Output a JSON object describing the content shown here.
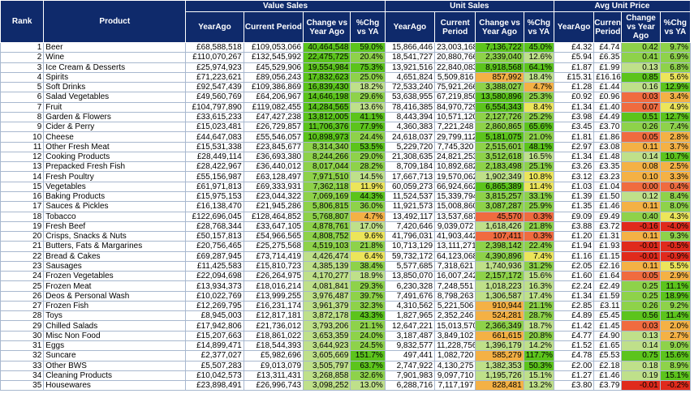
{
  "headers": {
    "rank": "Rank",
    "product": "Product",
    "value_sales": "Value Sales",
    "unit_sales": "Unit Sales",
    "avg_unit_price": "Avg Unit Price",
    "year_ago": "YearAgo",
    "current_period": "Current Period",
    "change_vs_year_ago": "Change vs Year Ago",
    "pct_chg_vs_ya": "%Chg vs YA",
    "current": "Current Period",
    "change_vs_year_ago_short": "Change vs Year Ago",
    "pct_chg_short": "%Chg vs YA"
  },
  "rows": [
    {
      "rank": "1",
      "product": "Beer",
      "v_ya": "£68,588,518",
      "v_cur": "£109,053,066",
      "v_chg": "40,464,548",
      "v_pct": "59.0%",
      "u_ya": "15,866,446",
      "u_cur": "23,003,168",
      "u_chg": "7,136,722",
      "u_pct": "45.0%",
      "p_ya": "£4.32",
      "p_cur": "£4.74",
      "p_chg": "0.42",
      "p_pct": "9.7%"
    },
    {
      "rank": "2",
      "product": "Wine",
      "v_ya": "£110,070,267",
      "v_cur": "£132,545,992",
      "v_chg": "22,475,725",
      "v_pct": "20.4%",
      "u_ya": "18,541,727",
      "u_cur": "20,880,766",
      "u_chg": "2,339,040",
      "u_pct": "12.6%",
      "p_ya": "£5.94",
      "p_cur": "£6.35",
      "p_chg": "0.41",
      "p_pct": "6.9%"
    },
    {
      "rank": "3",
      "product": "Ice Cream & Desserts",
      "v_ya": "£25,974,923",
      "v_cur": "£45,529,906",
      "v_chg": "19,554,984",
      "v_pct": "75.3%",
      "u_ya": "13,921,516",
      "u_cur": "22,840,083",
      "u_chg": "8,918,568",
      "u_pct": "64.1%",
      "p_ya": "£1.87",
      "p_cur": "£1.99",
      "p_chg": "0.13",
      "p_pct": "6.8%"
    },
    {
      "rank": "4",
      "product": "Spirits",
      "v_ya": "£71,223,621",
      "v_cur": "£89,056,243",
      "v_chg": "17,832,623",
      "v_pct": "25.0%",
      "u_ya": "4,651,824",
      "u_cur": "5,509,816",
      "u_chg": "857,992",
      "u_pct": "18.4%",
      "p_ya": "£15.31",
      "p_cur": "£16.16",
      "p_chg": "0.85",
      "p_pct": "5.6%"
    },
    {
      "rank": "5",
      "product": "Soft Drinks",
      "v_ya": "£92,547,439",
      "v_cur": "£109,386,869",
      "v_chg": "16,839,430",
      "v_pct": "18.2%",
      "u_ya": "72,533,240",
      "u_cur": "75,921,266",
      "u_chg": "3,388,027",
      "u_pct": "4.7%",
      "p_ya": "£1.28",
      "p_cur": "£1.44",
      "p_chg": "0.16",
      "p_pct": "12.9%"
    },
    {
      "rank": "6",
      "product": "Salad Vegetables",
      "v_ya": "£49,560,769",
      "v_cur": "£64,206,967",
      "v_chg": "14,646,198",
      "v_pct": "29.6%",
      "u_ya": "53,638,955",
      "u_cur": "67,219,850",
      "u_chg": "13,580,896",
      "u_pct": "25.3%",
      "p_ya": "£0.92",
      "p_cur": "£0.96",
      "p_chg": "0.03",
      "p_pct": "3.4%"
    },
    {
      "rank": "7",
      "product": "Fruit",
      "v_ya": "£104,797,890",
      "v_cur": "£119,082,455",
      "v_chg": "14,284,565",
      "v_pct": "13.6%",
      "u_ya": "78,416,385",
      "u_cur": "84,970,729",
      "u_chg": "6,554,343",
      "u_pct": "8.4%",
      "p_ya": "£1.34",
      "p_cur": "£1.40",
      "p_chg": "0.07",
      "p_pct": "4.9%"
    },
    {
      "rank": "8",
      "product": "Garden & Flowers",
      "v_ya": "£33,615,233",
      "v_cur": "£47,427,238",
      "v_chg": "13,812,005",
      "v_pct": "41.1%",
      "u_ya": "8,443,394",
      "u_cur": "10,571,120",
      "u_chg": "2,127,726",
      "u_pct": "25.2%",
      "p_ya": "£3.98",
      "p_cur": "£4.49",
      "p_chg": "0.51",
      "p_pct": "12.7%"
    },
    {
      "rank": "9",
      "product": "Cider & Perry",
      "v_ya": "£15,023,481",
      "v_cur": "£26,729,857",
      "v_chg": "11,706,376",
      "v_pct": "77.9%",
      "u_ya": "4,360,383",
      "u_cur": "7,221,248",
      "u_chg": "2,860,865",
      "u_pct": "65.6%",
      "p_ya": "£3.45",
      "p_cur": "£3.70",
      "p_chg": "0.26",
      "p_pct": "7.4%"
    },
    {
      "rank": "10",
      "product": "Cheese",
      "v_ya": "£44,647,083",
      "v_cur": "£55,546,057",
      "v_chg": "10,898,973",
      "v_pct": "24.4%",
      "u_ya": "24,618,037",
      "u_cur": "29,799,112",
      "u_chg": "5,181,075",
      "u_pct": "21.0%",
      "p_ya": "£1.81",
      "p_cur": "£1.86",
      "p_chg": "0.05",
      "p_pct": "2.8%"
    },
    {
      "rank": "11",
      "product": "Other Fresh Meat",
      "v_ya": "£15,531,338",
      "v_cur": "£23,845,677",
      "v_chg": "8,314,340",
      "v_pct": "53.5%",
      "u_ya": "5,229,720",
      "u_cur": "7,745,320",
      "u_chg": "2,515,601",
      "u_pct": "48.1%",
      "p_ya": "£2.97",
      "p_cur": "£3.08",
      "p_chg": "0.11",
      "p_pct": "3.7%"
    },
    {
      "rank": "12",
      "product": "Cooking Products",
      "v_ya": "£28,449,114",
      "v_cur": "£36,693,380",
      "v_chg": "8,244,266",
      "v_pct": "29.0%",
      "u_ya": "21,308,635",
      "u_cur": "24,821,253",
      "u_chg": "3,512,618",
      "u_pct": "16.5%",
      "p_ya": "£1.34",
      "p_cur": "£1.48",
      "p_chg": "0.14",
      "p_pct": "10.7%"
    },
    {
      "rank": "13",
      "product": "Prepacked Fresh Fish",
      "v_ya": "£28,422,967",
      "v_cur": "£36,440,012",
      "v_chg": "8,017,044",
      "v_pct": "28.2%",
      "u_ya": "8,709,184",
      "u_cur": "10,892,682",
      "u_chg": "2,183,498",
      "u_pct": "25.1%",
      "p_ya": "£3.26",
      "p_cur": "£3.35",
      "p_chg": "0.08",
      "p_pct": "2.5%"
    },
    {
      "rank": "14",
      "product": "Fresh Poultry",
      "v_ya": "£55,156,987",
      "v_cur": "£63,128,497",
      "v_chg": "7,971,510",
      "v_pct": "14.5%",
      "u_ya": "17,667,713",
      "u_cur": "19,570,062",
      "u_chg": "1,902,349",
      "u_pct": "10.8%",
      "p_ya": "£3.12",
      "p_cur": "£3.23",
      "p_chg": "0.10",
      "p_pct": "3.3%"
    },
    {
      "rank": "15",
      "product": "Vegetables",
      "v_ya": "£61,971,813",
      "v_cur": "£69,333,931",
      "v_chg": "7,362,118",
      "v_pct": "11.9%",
      "u_ya": "60,059,273",
      "u_cur": "66,924,662",
      "u_chg": "6,865,389",
      "u_pct": "11.4%",
      "p_ya": "£1.03",
      "p_cur": "£1.04",
      "p_chg": "0.00",
      "p_pct": "0.4%"
    },
    {
      "rank": "16",
      "product": "Baking Products",
      "v_ya": "£15,975,153",
      "v_cur": "£23,044,322",
      "v_chg": "7,069,169",
      "v_pct": "44.3%",
      "u_ya": "11,524,537",
      "u_cur": "15,339,794",
      "u_chg": "3,815,257",
      "u_pct": "33.1%",
      "p_ya": "£1.39",
      "p_cur": "£1.50",
      "p_chg": "0.12",
      "p_pct": "8.4%"
    },
    {
      "rank": "17",
      "product": "Sauces & Pickles",
      "v_ya": "£16,138,470",
      "v_cur": "£21,945,286",
      "v_chg": "5,806,815",
      "v_pct": "36.0%",
      "u_ya": "11,921,573",
      "u_cur": "15,008,860",
      "u_chg": "3,087,287",
      "u_pct": "25.9%",
      "p_ya": "£1.35",
      "p_cur": "£1.46",
      "p_chg": "0.11",
      "p_pct": "8.0%"
    },
    {
      "rank": "18",
      "product": "Tobacco",
      "v_ya": "£122,696,045",
      "v_cur": "£128,464,852",
      "v_chg": "5,768,807",
      "v_pct": "4.7%",
      "u_ya": "13,492,117",
      "u_cur": "13,537,687",
      "u_chg": "45,570",
      "u_pct": "0.3%",
      "p_ya": "£9.09",
      "p_cur": "£9.49",
      "p_chg": "0.40",
      "p_pct": "4.3%"
    },
    {
      "rank": "19",
      "product": "Fresh Beef",
      "v_ya": "£28,768,344",
      "v_cur": "£33,647,105",
      "v_chg": "4,878,761",
      "v_pct": "17.0%",
      "u_ya": "7,420,646",
      "u_cur": "9,039,072",
      "u_chg": "1,618,426",
      "u_pct": "21.8%",
      "p_ya": "£3.88",
      "p_cur": "£3.72",
      "p_chg": "-0.16",
      "p_pct": "-4.0%"
    },
    {
      "rank": "20",
      "product": "Crisps, Snacks & Nuts",
      "v_ya": "£50,157,813",
      "v_cur": "£54,966,565",
      "v_chg": "4,808,752",
      "v_pct": "9.6%",
      "u_ya": "41,796,031",
      "u_cur": "41,903,442",
      "u_chg": "107,411",
      "u_pct": "0.3%",
      "p_ya": "£1.20",
      "p_cur": "£1.31",
      "p_chg": "0.11",
      "p_pct": "9.3%"
    },
    {
      "rank": "21",
      "product": "Butters, Fats & Margarines",
      "v_ya": "£20,756,465",
      "v_cur": "£25,275,568",
      "v_chg": "4,519,103",
      "v_pct": "21.8%",
      "u_ya": "10,713,129",
      "u_cur": "13,111,271",
      "u_chg": "2,398,142",
      "u_pct": "22.4%",
      "p_ya": "£1.94",
      "p_cur": "£1.93",
      "p_chg": "-0.01",
      "p_pct": "-0.5%"
    },
    {
      "rank": "22",
      "product": "Bread & Cakes",
      "v_ya": "£69,287,945",
      "v_cur": "£73,714,419",
      "v_chg": "4,426,474",
      "v_pct": "6.4%",
      "u_ya": "59,732,172",
      "u_cur": "64,123,068",
      "u_chg": "4,390,896",
      "u_pct": "7.4%",
      "p_ya": "£1.16",
      "p_cur": "£1.15",
      "p_chg": "-0.01",
      "p_pct": "-0.9%"
    },
    {
      "rank": "23",
      "product": "Sausages",
      "v_ya": "£11,425,583",
      "v_cur": "£15,810,723",
      "v_chg": "4,385,139",
      "v_pct": "38.4%",
      "u_ya": "5,577,685",
      "u_cur": "7,318,621",
      "u_chg": "1,740,936",
      "u_pct": "31.2%",
      "p_ya": "£2.05",
      "p_cur": "£2.16",
      "p_chg": "0.11",
      "p_pct": "5.5%"
    },
    {
      "rank": "24",
      "product": "Frozen Vegetables",
      "v_ya": "£22,094,698",
      "v_cur": "£26,264,975",
      "v_chg": "4,170,277",
      "v_pct": "18.9%",
      "u_ya": "13,850,070",
      "u_cur": "16,007,242",
      "u_chg": "2,157,172",
      "u_pct": "15.6%",
      "p_ya": "£1.60",
      "p_cur": "£1.64",
      "p_chg": "0.05",
      "p_pct": "2.9%"
    },
    {
      "rank": "25",
      "product": "Frozen Meat",
      "v_ya": "£13,934,373",
      "v_cur": "£18,016,214",
      "v_chg": "4,081,841",
      "v_pct": "29.3%",
      "u_ya": "6,230,328",
      "u_cur": "7,248,551",
      "u_chg": "1,018,223",
      "u_pct": "16.3%",
      "p_ya": "£2.24",
      "p_cur": "£2.49",
      "p_chg": "0.25",
      "p_pct": "11.1%"
    },
    {
      "rank": "26",
      "product": "Deos & Personal Wash",
      "v_ya": "£10,022,769",
      "v_cur": "£13,999,255",
      "v_chg": "3,976,487",
      "v_pct": "39.7%",
      "u_ya": "7,491,676",
      "u_cur": "8,798,263",
      "u_chg": "1,306,587",
      "u_pct": "17.4%",
      "p_ya": "£1.34",
      "p_cur": "£1.59",
      "p_chg": "0.25",
      "p_pct": "18.9%"
    },
    {
      "rank": "27",
      "product": "Frozen Fish",
      "v_ya": "£12,269,795",
      "v_cur": "£16,231,174",
      "v_chg": "3,961,379",
      "v_pct": "32.3%",
      "u_ya": "4,310,562",
      "u_cur": "5,221,506",
      "u_chg": "910,944",
      "u_pct": "21.1%",
      "p_ya": "£2.85",
      "p_cur": "£3.11",
      "p_chg": "0.26",
      "p_pct": "9.2%"
    },
    {
      "rank": "28",
      "product": "Toys",
      "v_ya": "£8,945,003",
      "v_cur": "£12,817,181",
      "v_chg": "3,872,178",
      "v_pct": "43.3%",
      "u_ya": "1,827,965",
      "u_cur": "2,352,246",
      "u_chg": "524,281",
      "u_pct": "28.7%",
      "p_ya": "£4.89",
      "p_cur": "£5.45",
      "p_chg": "0.56",
      "p_pct": "11.4%"
    },
    {
      "rank": "29",
      "product": "Chilled Salads",
      "v_ya": "£17,942,806",
      "v_cur": "£21,736,012",
      "v_chg": "3,793,206",
      "v_pct": "21.1%",
      "u_ya": "12,647,221",
      "u_cur": "15,013,570",
      "u_chg": "2,366,349",
      "u_pct": "18.7%",
      "p_ya": "£1.42",
      "p_cur": "£1.45",
      "p_chg": "0.03",
      "p_pct": "2.0%"
    },
    {
      "rank": "30",
      "product": "Misc Non Food",
      "v_ya": "£15,207,663",
      "v_cur": "£18,861,022",
      "v_chg": "3,653,359",
      "v_pct": "24.0%",
      "u_ya": "3,187,487",
      "u_cur": "3,849,102",
      "u_chg": "661,615",
      "u_pct": "20.8%",
      "p_ya": "£4.77",
      "p_cur": "£4.90",
      "p_chg": "0.13",
      "p_pct": "2.7%"
    },
    {
      "rank": "31",
      "product": "Eggs",
      "v_ya": "£14,899,471",
      "v_cur": "£18,544,393",
      "v_chg": "3,644,923",
      "v_pct": "24.5%",
      "u_ya": "9,832,577",
      "u_cur": "11,228,756",
      "u_chg": "1,396,179",
      "u_pct": "14.2%",
      "p_ya": "£1.52",
      "p_cur": "£1.65",
      "p_chg": "0.14",
      "p_pct": "9.0%"
    },
    {
      "rank": "32",
      "product": "Suncare",
      "v_ya": "£2,377,027",
      "v_cur": "£5,982,696",
      "v_chg": "3,605,669",
      "v_pct": "151.7%",
      "u_ya": "497,441",
      "u_cur": "1,082,720",
      "u_chg": "585,279",
      "u_pct": "117.7%",
      "p_ya": "£4.78",
      "p_cur": "£5.53",
      "p_chg": "0.75",
      "p_pct": "15.6%"
    },
    {
      "rank": "33",
      "product": "Other BWS",
      "v_ya": "£5,507,283",
      "v_cur": "£9,013,079",
      "v_chg": "3,505,797",
      "v_pct": "63.7%",
      "u_ya": "2,747,922",
      "u_cur": "4,130,275",
      "u_chg": "1,382,353",
      "u_pct": "50.3%",
      "p_ya": "£2.00",
      "p_cur": "£2.18",
      "p_chg": "0.18",
      "p_pct": "8.9%"
    },
    {
      "rank": "34",
      "product": "Cleaning Products",
      "v_ya": "£10,042,573",
      "v_cur": "£13,311,431",
      "v_chg": "3,268,858",
      "v_pct": "32.6%",
      "u_ya": "7,901,983",
      "u_cur": "9,097,710",
      "u_chg": "1,195,726",
      "u_pct": "15.1%",
      "p_ya": "£1.27",
      "p_cur": "£1.46",
      "p_chg": "0.19",
      "p_pct": "15.1%"
    },
    {
      "rank": "35",
      "product": "Housewares",
      "v_ya": "£23,898,491",
      "v_cur": "£26,996,743",
      "v_chg": "3,098,252",
      "v_pct": "13.0%",
      "u_ya": "6,288,716",
      "u_cur": "7,117,197",
      "u_chg": "828,481",
      "u_pct": "13.2%",
      "p_ya": "£3.80",
      "p_cur": "£3.79",
      "p_chg": "-0.01",
      "p_pct": "-0.2%"
    }
  ],
  "colors": {
    "header_bg": "#0f2a6b",
    "green_strong": "#5cc41c",
    "green_mid": "#8ed24a",
    "green_light": "#bfe08a",
    "yellow": "#ece55a",
    "orange": "#f4b145",
    "red_light": "#f06b3f",
    "red_dark": "#e02a1c"
  }
}
